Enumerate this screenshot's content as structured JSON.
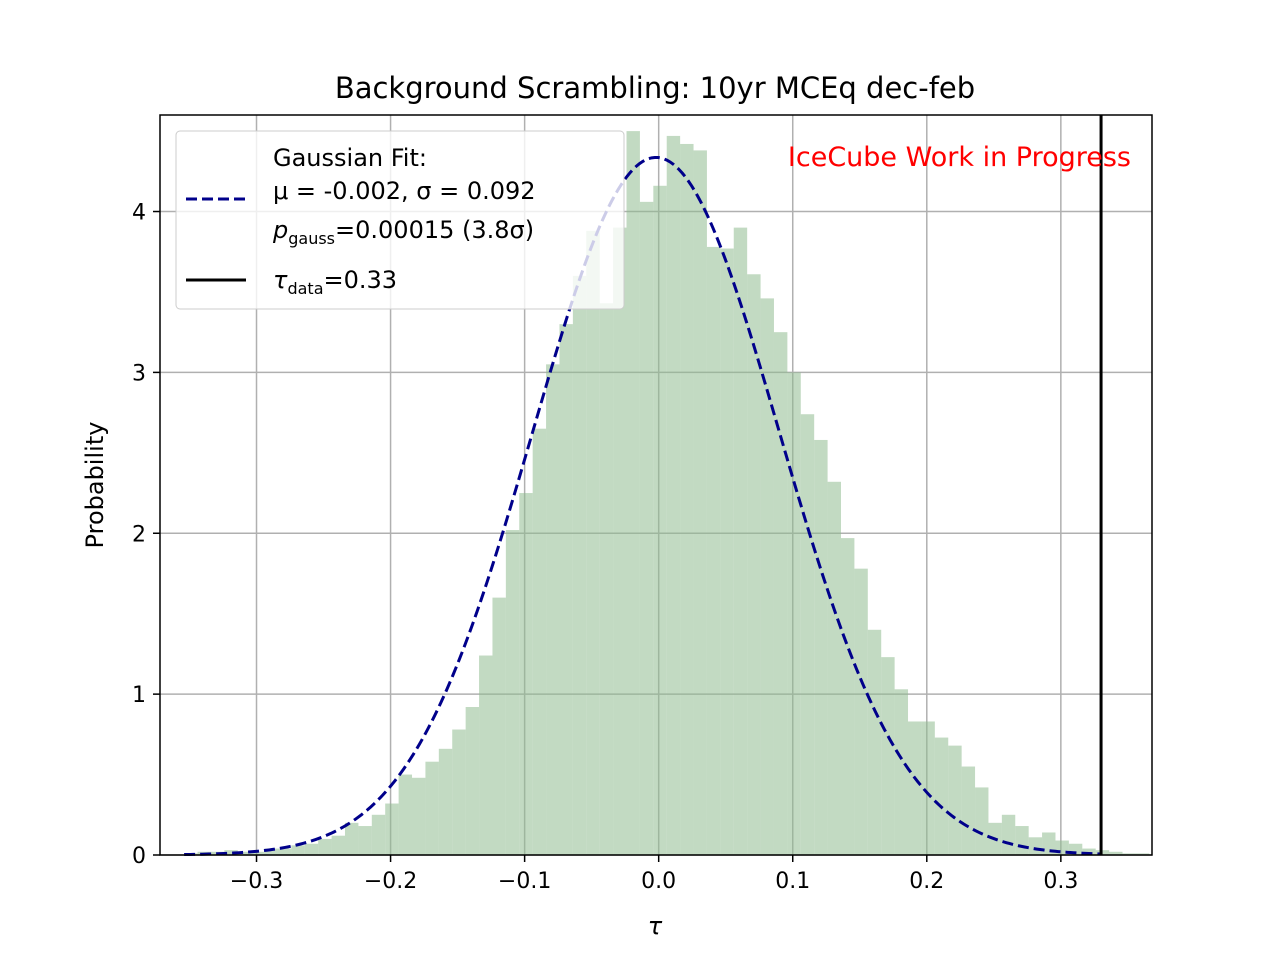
{
  "chart_data": {
    "type": "bar",
    "title": "Background Scrambling: 10yr MCEq dec-feb",
    "xlabel": "τ",
    "ylabel": "Probability",
    "xlim": [
      -0.372,
      0.368
    ],
    "ylim": [
      0,
      4.6
    ],
    "xticks": [
      -0.3,
      -0.2,
      -0.1,
      0.0,
      0.1,
      0.2,
      0.3
    ],
    "xtick_labels": [
      "−0.3",
      "−0.2",
      "−0.1",
      "0.0",
      "0.1",
      "0.2",
      "0.3"
    ],
    "yticks": [
      0,
      1,
      2,
      3,
      4
    ],
    "ytick_labels": [
      "0",
      "1",
      "2",
      "3",
      "4"
    ],
    "grid": true,
    "legend_position": "top-left",
    "histogram": {
      "color": "#8fbc8f",
      "alpha": 0.55,
      "bin_start": -0.354,
      "bin_width": 0.01,
      "values": [
        0.01,
        0.02,
        0.02,
        0.03,
        0.02,
        0.02,
        0.04,
        0.04,
        0.06,
        0.07,
        0.1,
        0.12,
        0.2,
        0.18,
        0.25,
        0.32,
        0.5,
        0.48,
        0.58,
        0.66,
        0.78,
        0.92,
        1.24,
        1.6,
        2.02,
        2.25,
        2.65,
        3.05,
        3.3,
        3.6,
        3.88,
        3.43,
        3.9,
        4.5,
        4.06,
        4.16,
        4.47,
        4.42,
        4.38,
        3.78,
        3.77,
        3.9,
        3.61,
        3.46,
        3.25,
        3.0,
        2.74,
        2.58,
        2.32,
        1.97,
        1.78,
        1.4,
        1.23,
        1.03,
        0.83,
        0.83,
        0.73,
        0.68,
        0.55,
        0.42,
        0.2,
        0.25,
        0.18,
        0.11,
        0.14,
        0.09,
        0.07,
        0.04,
        0.03,
        0.02,
        0.01,
        0.01
      ]
    },
    "gaussian_fit": {
      "name_line1": "Gaussian Fit:",
      "mu": -0.002,
      "sigma": 0.092,
      "mu_text": "μ = -0.002, σ = 0.092",
      "p_prefix": "p",
      "p_sub": "gauss",
      "p_value_text": "=0.00015 (3.8σ)",
      "color": "#00008b"
    },
    "tau_data": {
      "value": 0.33,
      "prefix": "τ",
      "sub": "data",
      "value_text": "=0.33",
      "color": "#000000"
    },
    "annotation": {
      "text": "IceCube Work in Progress",
      "color": "#ff0000"
    }
  }
}
